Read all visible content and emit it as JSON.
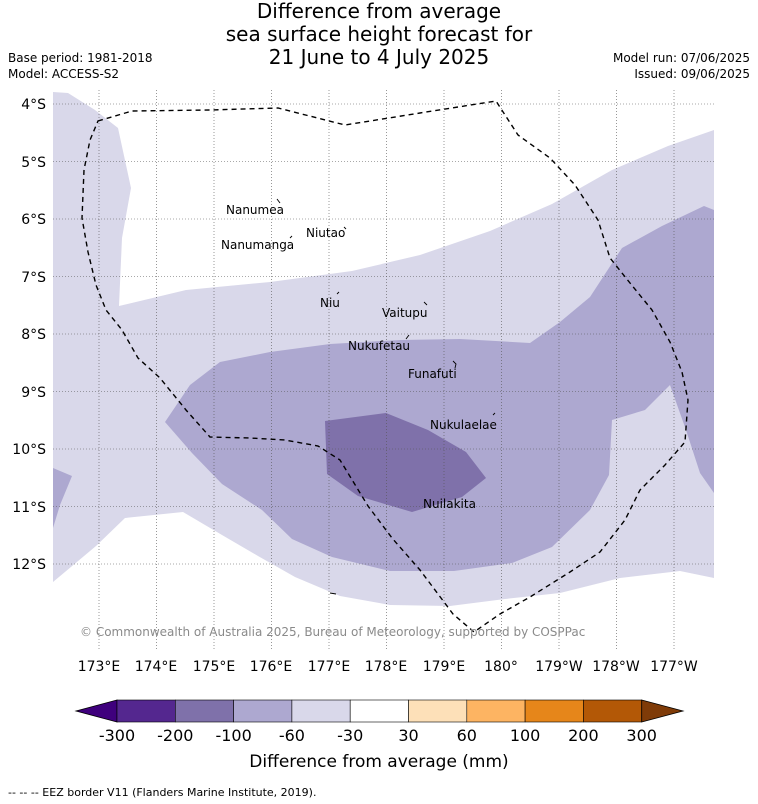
{
  "title": {
    "line1": "Difference from average",
    "line2": "sea surface height forecast for",
    "line3": "21 June to 4 July 2025"
  },
  "meta": {
    "base_period": "Base period: 1981-2018",
    "model": "Model: ACCESS-S2",
    "model_run": "Model run: 07/06/2025",
    "issued": "Issued: 09/06/2025"
  },
  "map": {
    "lat_labels": [
      "4°S",
      "5°S",
      "6°S",
      "7°S",
      "8°S",
      "9°S",
      "10°S",
      "11°S",
      "12°S"
    ],
    "lon_labels": [
      "173°E",
      "174°E",
      "175°E",
      "176°E",
      "177°E",
      "178°E",
      "179°E",
      "180°",
      "179°W",
      "178°W",
      "177°W"
    ],
    "islands": [
      {
        "name": "Nanumea"
      },
      {
        "name": "Niutao"
      },
      {
        "name": "Nanumanga"
      },
      {
        "name": "Niu"
      },
      {
        "name": "Vaitupu"
      },
      {
        "name": "Nukufetau"
      },
      {
        "name": "Funafuti"
      },
      {
        "name": "Nukulaelae"
      },
      {
        "name": "Nuilakita"
      }
    ],
    "copyright": "© Commonwealth of Australia 2025, Bureau of Meteorology, supported by COSPPac",
    "colors": {
      "-300 to -200": "#54278f",
      "-200 to -100": "#7f71aa",
      "-100 to -60": "#ada8d0",
      "-60 to -30": "#d9d8ea",
      "-30 to 30": "#ffffff",
      "30 to 60": "#fde0b8",
      "60 to 100": "#fdb462",
      "100 to 200": "#e6861a",
      "200 to 300": "#b35806"
    }
  },
  "colorbar": {
    "ticks": [
      "-300",
      "-200",
      "-100",
      "-60",
      "-30",
      "30",
      "60",
      "100",
      "200",
      "300"
    ],
    "title": "Difference from average (mm)"
  },
  "footnote": "--  --  -- EEZ border V11 (Flanders Marine Institute, 2019)."
}
